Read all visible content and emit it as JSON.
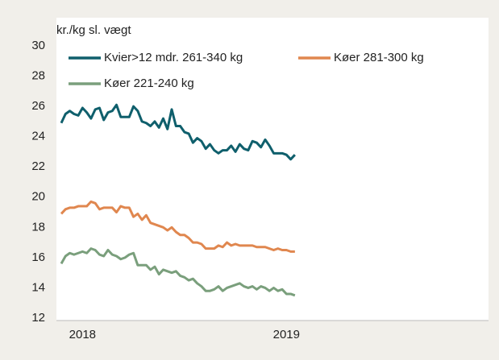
{
  "chart_data": {
    "type": "line",
    "y_label": "kr./kg sl. vægt",
    "categories": [
      null,
      null,
      null,
      null,
      null,
      "2018",
      null,
      null,
      null,
      null,
      null,
      null,
      null,
      null,
      null,
      null,
      null,
      null,
      null,
      null,
      null,
      null,
      null,
      null,
      null,
      null,
      null,
      null,
      null,
      null,
      null,
      null,
      null,
      null,
      null,
      null,
      null,
      null,
      null,
      null,
      null,
      null,
      null,
      null,
      null,
      null,
      null,
      null,
      null,
      null,
      null,
      null,
      null,
      "2019",
      null,
      null
    ],
    "series": [
      {
        "name": "Kvier>12 mdr. 261-340 kg",
        "color": "#0f5f6c",
        "values": [
          24.9,
          25.5,
          25.7,
          25.5,
          25.4,
          25.9,
          25.6,
          25.2,
          25.8,
          25.9,
          25.1,
          25.6,
          25.7,
          26.1,
          25.3,
          25.3,
          25.3,
          26.0,
          25.7,
          25.0,
          24.9,
          24.7,
          25.0,
          24.6,
          25.2,
          24.5,
          25.8,
          24.7,
          24.7,
          24.3,
          24.2,
          23.6,
          23.9,
          23.7,
          23.2,
          23.5,
          23.1,
          22.9,
          23.1,
          23.1,
          23.4,
          23.0,
          23.5,
          23.2,
          23.1,
          23.7,
          23.6,
          23.3,
          23.8,
          23.4,
          22.9,
          22.9,
          22.9,
          22.8,
          22.5,
          22.8
        ]
      },
      {
        "name": "Køer 281-300 kg",
        "color": "#e0874f",
        "values": [
          18.9,
          19.2,
          19.3,
          19.3,
          19.4,
          19.4,
          19.4,
          19.7,
          19.6,
          19.2,
          19.3,
          19.3,
          19.3,
          19.0,
          19.4,
          19.3,
          19.3,
          18.7,
          18.9,
          18.5,
          18.8,
          18.3,
          18.2,
          18.1,
          18.0,
          17.8,
          18.0,
          17.7,
          17.5,
          17.5,
          17.3,
          17.0,
          17.0,
          16.9,
          16.6,
          16.6,
          16.6,
          16.8,
          16.7,
          17.0,
          16.8,
          16.9,
          16.8,
          16.8,
          16.8,
          16.8,
          16.7,
          16.7,
          16.7,
          16.6,
          16.5,
          16.6,
          16.5,
          16.5,
          16.4,
          16.4
        ]
      },
      {
        "name": "Køer 221-240 kg",
        "color": "#7a9f7c",
        "values": [
          15.6,
          16.1,
          16.3,
          16.2,
          16.3,
          16.4,
          16.3,
          16.6,
          16.5,
          16.2,
          16.1,
          16.5,
          16.2,
          16.1,
          15.9,
          16.0,
          16.2,
          16.3,
          15.5,
          15.5,
          15.5,
          15.2,
          15.4,
          14.9,
          15.2,
          15.1,
          15.0,
          15.1,
          14.8,
          14.7,
          14.5,
          14.6,
          14.3,
          14.1,
          13.8,
          13.8,
          13.9,
          14.1,
          13.8,
          14.0,
          14.1,
          14.2,
          14.3,
          14.1,
          14.0,
          14.1,
          13.9,
          14.1,
          14.0,
          13.8,
          14.0,
          13.8,
          13.9,
          13.6,
          13.6,
          13.5
        ]
      }
    ],
    "ylim": [
      12,
      30
    ],
    "yticks": [
      12,
      14,
      16,
      18,
      20,
      22,
      24,
      26,
      28,
      30
    ],
    "grid": false
  }
}
